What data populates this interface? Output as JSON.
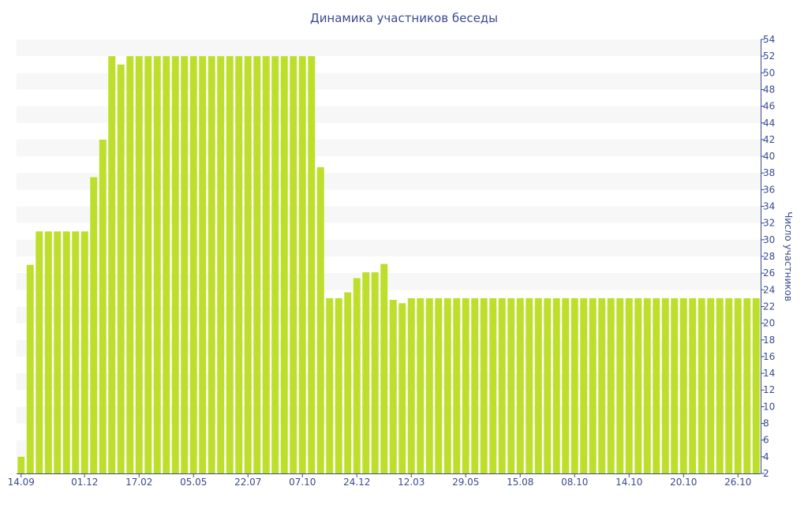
{
  "chart_data": {
    "type": "bar",
    "title": "Динамика участников беседы",
    "ylabel": "Число участников",
    "xlabel": "",
    "ylim": [
      2,
      54
    ],
    "y_ticks": [
      2,
      4,
      6,
      8,
      10,
      12,
      14,
      16,
      18,
      20,
      22,
      24,
      26,
      28,
      30,
      32,
      34,
      36,
      38,
      40,
      42,
      44,
      46,
      48,
      50,
      52,
      54
    ],
    "y_axis_side": "right",
    "x_tick_labels": [
      "14.09",
      "01.12",
      "17.02",
      "05.05",
      "22.07",
      "07.10",
      "24.12",
      "12.03",
      "29.05",
      "15.08",
      "08.10",
      "14.10",
      "20.10",
      "26.10"
    ],
    "x_tick_bar_index": [
      0,
      7,
      13,
      19,
      25,
      31,
      37,
      43,
      49,
      55,
      61,
      67,
      73,
      79
    ],
    "grid": "alternating horizontal bands",
    "bar_color": "#bddf2b",
    "values": [
      4,
      27,
      31,
      31,
      31,
      31,
      31,
      31,
      37.5,
      42,
      52,
      51,
      52,
      52,
      52,
      52,
      52,
      52,
      52,
      52,
      52,
      52,
      52,
      52,
      52,
      52,
      52,
      52,
      52,
      52,
      52,
      52,
      52,
      38.7,
      23,
      23,
      23.7,
      25.4,
      26.1,
      26.1,
      27.1,
      22.8,
      22.4,
      23,
      23,
      23,
      23,
      23,
      23,
      23,
      23,
      23,
      23,
      23,
      23,
      23,
      23,
      23,
      23,
      23,
      23,
      23,
      23,
      23,
      23,
      23,
      23,
      23,
      23,
      23,
      23,
      23,
      23,
      23,
      23,
      23,
      23,
      23,
      23,
      23,
      23,
      23
    ]
  }
}
